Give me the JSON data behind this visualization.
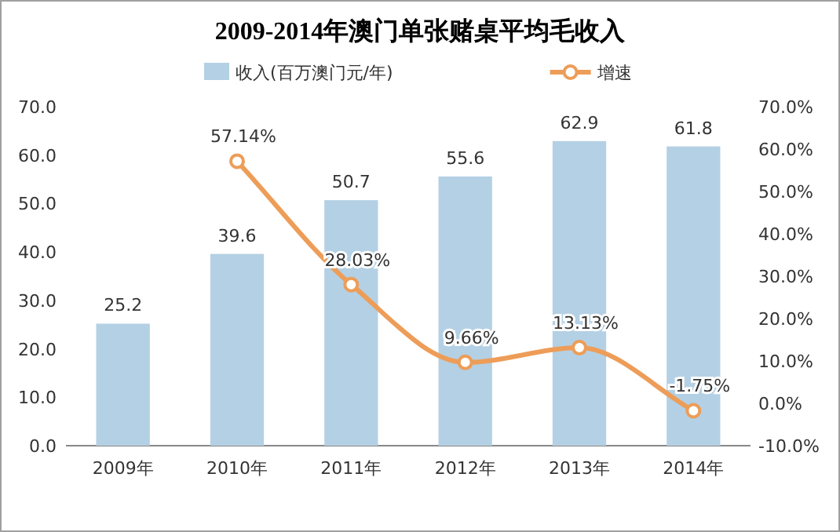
{
  "chart_data": {
    "type": "bar",
    "title": "2009-2014年澳门单张赌桌平均毛收入",
    "categories": [
      "2009年",
      "2010年",
      "2011年",
      "2012年",
      "2013年",
      "2014年"
    ],
    "series": [
      {
        "name": "收入(百万澳门元/年)",
        "color": "#b4d0e4",
        "values": [
          25.2,
          39.6,
          50.7,
          55.6,
          62.9,
          61.8
        ],
        "value_labels": [
          "25.2",
          "39.6",
          "50.7",
          "55.6",
          "62.9",
          "61.8"
        ]
      },
      {
        "name": "增速",
        "type": "line",
        "axis": "y2",
        "color": "#ed9d58",
        "values": [
          null,
          57.14,
          28.03,
          9.66,
          13.13,
          -1.75
        ],
        "value_labels": [
          null,
          "57.14%",
          "28.03%",
          "9.66%",
          "13.13%",
          "-1.75%"
        ]
      }
    ],
    "ylim": [
      0,
      70
    ],
    "yticks": [
      {
        "value": 0,
        "label": "0.0"
      },
      {
        "value": 10,
        "label": "10.0"
      },
      {
        "value": 20,
        "label": "20.0"
      },
      {
        "value": 30,
        "label": "30.0"
      },
      {
        "value": 40,
        "label": "40.0"
      },
      {
        "value": 50,
        "label": "50.0"
      },
      {
        "value": 60,
        "label": "60.0"
      },
      {
        "value": 70,
        "label": "70.0"
      }
    ],
    "y2lim": [
      -10,
      70
    ],
    "y2ticks": [
      {
        "value": -10,
        "label": "-10.0%"
      },
      {
        "value": 0,
        "label": "0.0%"
      },
      {
        "value": 10,
        "label": "10.0%"
      },
      {
        "value": 20,
        "label": "20.0%"
      },
      {
        "value": 30,
        "label": "30.0%"
      },
      {
        "value": 40,
        "label": "40.0%"
      },
      {
        "value": 50,
        "label": "50.0%"
      },
      {
        "value": 60,
        "label": "60.0%"
      },
      {
        "value": 70,
        "label": "70.0%"
      }
    ],
    "legend": "top",
    "marker": "circle",
    "line_style": "solid",
    "grid": false
  }
}
